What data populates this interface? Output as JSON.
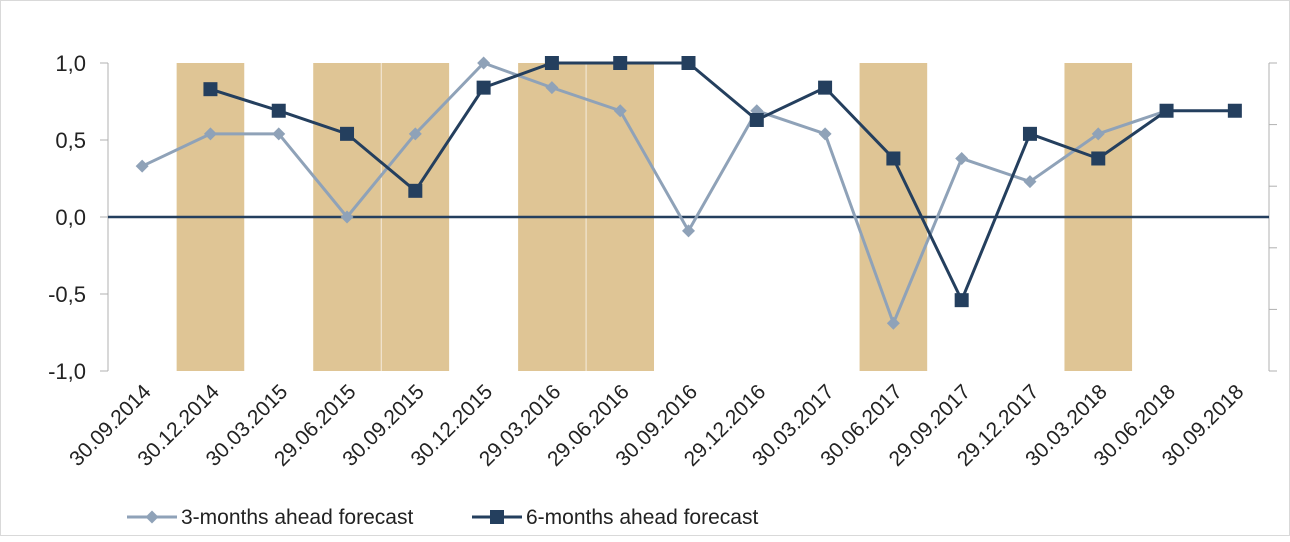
{
  "chart_data": {
    "type": "line",
    "title": "",
    "xlabel": "",
    "ylabel": "",
    "ylim": [
      -1.0,
      1.0
    ],
    "y_ticks": [
      "1,0",
      "0,5",
      "0,0",
      "-0,5",
      "-1,0"
    ],
    "y_tick_values": [
      1.0,
      0.5,
      0.0,
      -0.5,
      -1.0
    ],
    "grid": false,
    "legend_position": "bottom",
    "categories": [
      "30.09.2014",
      "30.12.2014",
      "30.03.2015",
      "29.06.2015",
      "30.09.2015",
      "30.12.2015",
      "29.03.2016",
      "29.06.2016",
      "30.09.2016",
      "29.12.2016",
      "30.03.2017",
      "30.06.2017",
      "29.09.2017",
      "29.12.2017",
      "30.03.2018",
      "30.06.2018",
      "30.09.2018"
    ],
    "shaded_bands": {
      "color": "#dfc595",
      "categories": [
        "30.12.2014",
        "29.06.2015",
        "30.09.2015",
        "29.03.2016",
        "29.06.2016",
        "30.06.2017",
        "30.03.2018"
      ]
    },
    "series": [
      {
        "name": "3-months ahead forecast",
        "color": "#8fa2b8",
        "marker": "diamond",
        "values": [
          0.33,
          0.54,
          0.54,
          0.0,
          0.54,
          1.0,
          0.84,
          0.69,
          -0.09,
          0.69,
          0.54,
          -0.69,
          0.38,
          0.23,
          0.54,
          0.69,
          null
        ]
      },
      {
        "name": "6-months ahead forecast",
        "color": "#243f5e",
        "marker": "square",
        "values": [
          null,
          0.83,
          0.69,
          0.54,
          0.17,
          0.84,
          1.0,
          1.0,
          1.0,
          0.63,
          0.84,
          0.38,
          -0.54,
          0.54,
          0.38,
          0.69,
          0.69
        ]
      }
    ]
  }
}
